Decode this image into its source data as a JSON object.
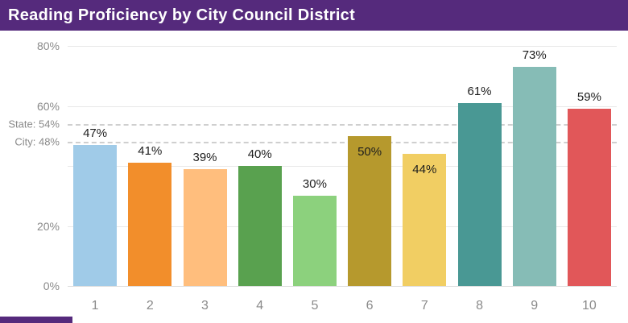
{
  "header": {
    "title": "Reading Proficiency by City Council District"
  },
  "colors": {
    "header_bg": "#552a7c",
    "accent_bg": "#552a7c",
    "grid_line": "#e8e8e8",
    "reference_line": "#cfcfcf",
    "axis_text": "#8a8a8a",
    "value_text": "#1d1d1d"
  },
  "chart_data": {
    "type": "bar",
    "title": "Reading Proficiency by City Council District",
    "categories": [
      "1",
      "2",
      "3",
      "4",
      "5",
      "6",
      "7",
      "8",
      "9",
      "10"
    ],
    "values": [
      47,
      41,
      39,
      40,
      30,
      50,
      44,
      61,
      73,
      59
    ],
    "value_labels": [
      "47%",
      "41%",
      "39%",
      "40%",
      "30%",
      "50%",
      "44%",
      "61%",
      "73%",
      "59%"
    ],
    "label_inside": [
      false,
      false,
      false,
      false,
      false,
      true,
      true,
      false,
      false,
      false
    ],
    "bar_colors": [
      "#A0CBE8",
      "#F28E2B",
      "#FFBE7D",
      "#59A14F",
      "#8CD17D",
      "#B6992D",
      "#F1CE63",
      "#499894",
      "#86BCB6",
      "#E15759"
    ],
    "xlabel": "",
    "ylabel": "",
    "ylim": [
      0,
      80
    ],
    "yticks": [
      {
        "value": 80,
        "label": "80%"
      },
      {
        "value": 60,
        "label": "60%"
      },
      {
        "value": 20,
        "label": "20%"
      },
      {
        "value": 0,
        "label": "0%"
      }
    ],
    "gridlines": [
      20,
      40,
      60,
      80
    ],
    "reference_lines": [
      {
        "value": 54,
        "label": "State: 54%"
      },
      {
        "value": 48,
        "label": "City: 48%"
      }
    ],
    "legend": "none",
    "grid": "horizontal"
  }
}
